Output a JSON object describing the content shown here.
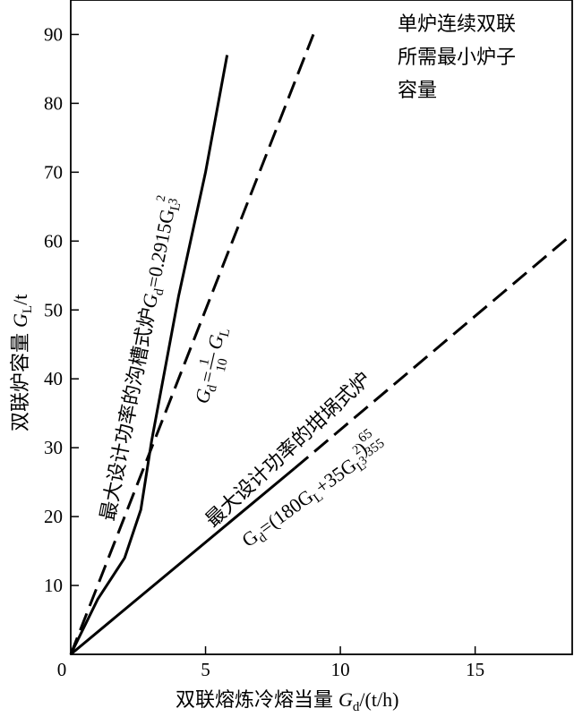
{
  "chart_data": {
    "type": "line",
    "title": "",
    "xlabel_text": "双联熔炼冷熔当量",
    "xlabel_sym": "G",
    "xlabel_sub": "d",
    "xlabel_unit": "/(t/h)",
    "ylabel_text": "双联炉容量",
    "ylabel_sym": "G",
    "ylabel_sub": "L",
    "ylabel_unit": "/t",
    "xlim": [
      0,
      18.6
    ],
    "ylim": [
      0,
      95
    ],
    "xticks": [
      0,
      5,
      10,
      15
    ],
    "xtick_labels": [
      "0",
      "5",
      "10",
      "15"
    ],
    "yticks": [
      10,
      20,
      30,
      40,
      50,
      60,
      70,
      80,
      90
    ],
    "ytick_labels": [
      "10",
      "20",
      "30",
      "40",
      "50",
      "60",
      "70",
      "80",
      "90"
    ],
    "grid": false,
    "corner_note": [
      "单炉连续双联",
      "所需最小炉子",
      "容量"
    ],
    "series": [
      {
        "style": "solid",
        "x": [
          0,
          1.0,
          2.0,
          2.6,
          3.0,
          4.0,
          5.0,
          5.8
        ],
        "y": [
          0,
          8,
          14,
          21,
          31,
          52,
          70,
          87
        ]
      },
      {
        "style": "dashed",
        "x": [
          0,
          9.0
        ],
        "y": [
          0,
          90
        ]
      },
      {
        "style": "solid-dashed",
        "solid_until_x": 8.3,
        "x": [
          0,
          8.3,
          18.6
        ],
        "y": [
          0,
          27,
          61
        ]
      }
    ],
    "annotations": {
      "channel_furnace_text": "最大设计功率的沟槽式炉",
      "channel_formula": [
        "G",
        "d",
        "=0.2915G",
        "L",
        "2",
        "3"
      ],
      "line_formula": [
        "G",
        "d",
        "=",
        "1",
        "10",
        "G",
        "L"
      ],
      "crucible_text": "最大设计功率的坩埚式炉",
      "crucible_formula": [
        "G",
        "d",
        "=(180G",
        "L",
        "+35G",
        "L",
        "2",
        "3",
        ")",
        "65",
        "355"
      ]
    }
  }
}
